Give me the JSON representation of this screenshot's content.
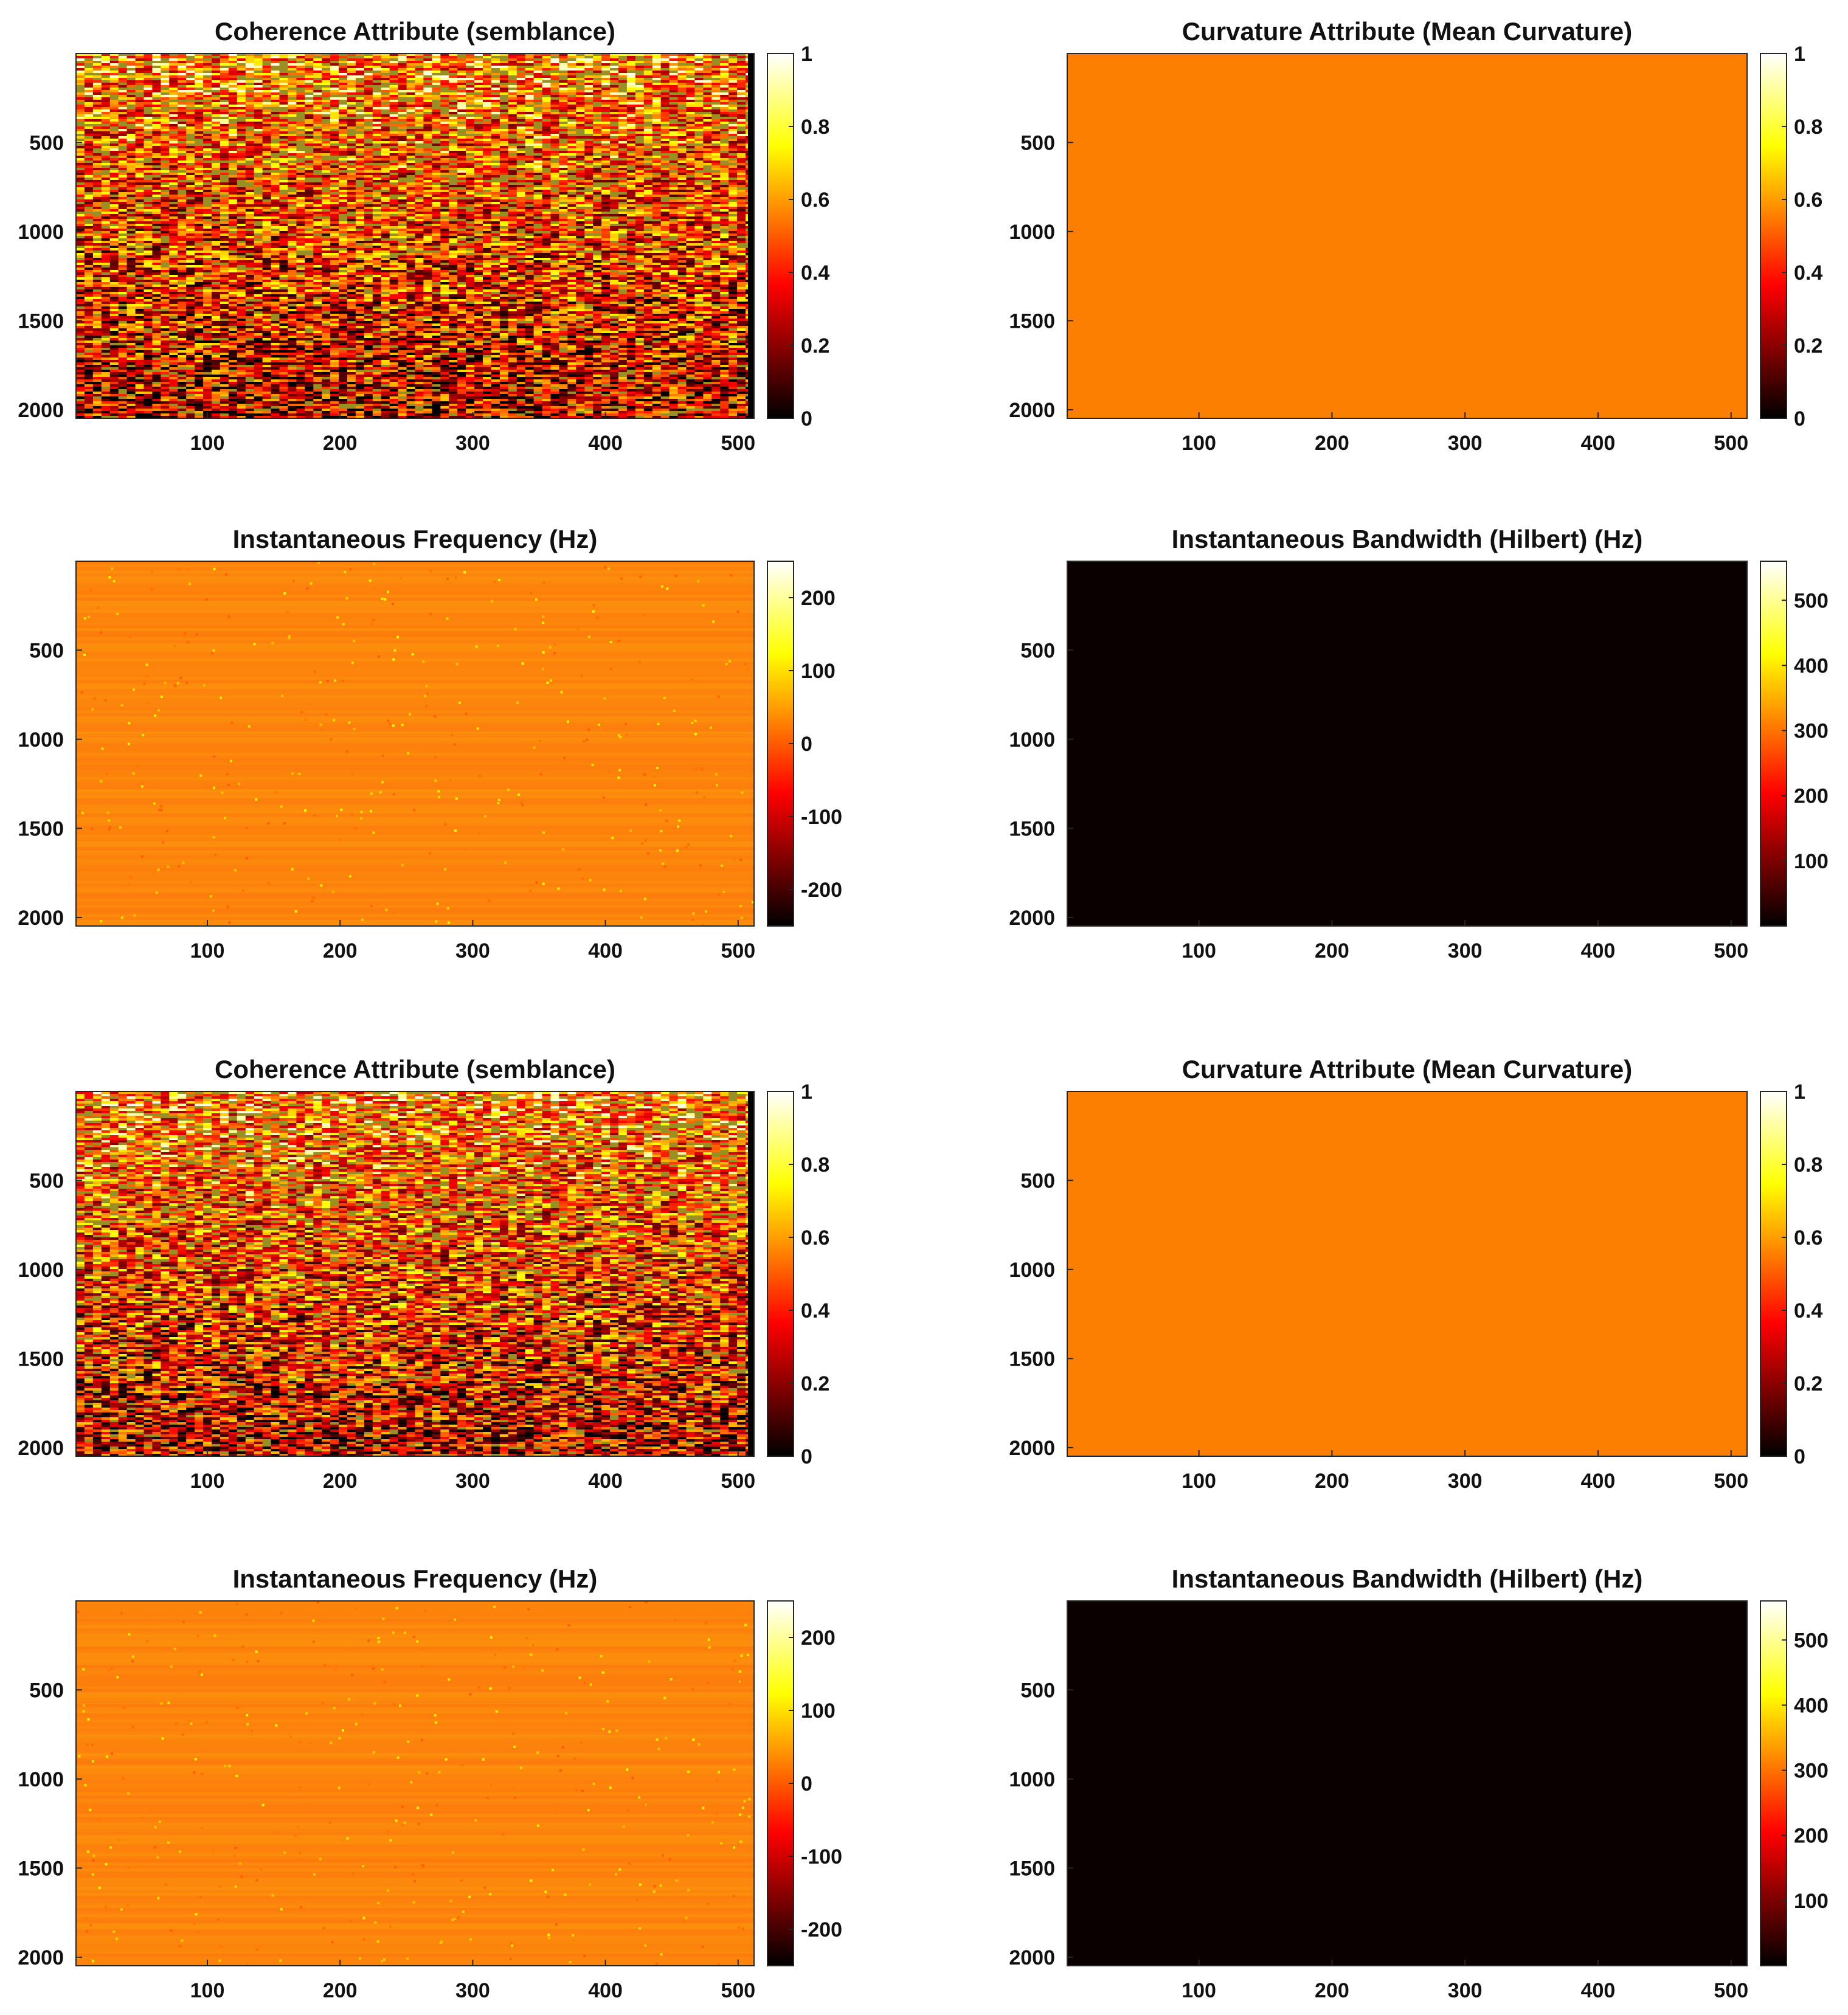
{
  "chart_data": [
    {
      "type": "heatmap",
      "title": "Coherence Attribute (semblance)",
      "x_ticks": [
        100,
        200,
        300,
        400,
        500
      ],
      "xlim": [
        1,
        512
      ],
      "y_ticks": [
        500,
        1000,
        1500,
        2000
      ],
      "ylim": [
        1,
        2048
      ],
      "y_reversed": true,
      "colorbar": {
        "colormap": "hot",
        "ticks": [
          "0",
          "0.2",
          "0.4",
          "0.6",
          "0.8",
          "1"
        ],
        "range": [
          0,
          1
        ]
      },
      "pattern": "coherence",
      "fill_color": "#c84a12"
    },
    {
      "type": "heatmap",
      "title": "Curvature Attribute (Mean Curvature)",
      "x_ticks": [
        100,
        200,
        300,
        400,
        500
      ],
      "xlim": [
        1,
        512
      ],
      "y_ticks": [
        500,
        1000,
        1500,
        2000
      ],
      "ylim": [
        1,
        2048
      ],
      "y_reversed": true,
      "colorbar": {
        "colormap": "hot",
        "ticks": [
          "0",
          "0.2",
          "0.4",
          "0.6",
          "0.8",
          "1"
        ],
        "range": [
          0,
          1
        ]
      },
      "pattern": "uniform",
      "fill_color": "#fd7f02"
    },
    {
      "type": "heatmap",
      "title": "Instantaneous Frequency (Hz)",
      "x_ticks": [
        100,
        200,
        300,
        400,
        500
      ],
      "xlim": [
        1,
        512
      ],
      "y_ticks": [
        500,
        1000,
        1500,
        2000
      ],
      "ylim": [
        1,
        2048
      ],
      "y_reversed": true,
      "colorbar": {
        "colormap": "hot",
        "ticks": [
          "-200",
          "-100",
          "0",
          "100",
          "200"
        ],
        "range": [
          -250,
          250
        ]
      },
      "pattern": "noisy",
      "fill_color": "#f88a1e"
    },
    {
      "type": "heatmap",
      "title": "Instantaneous Bandwidth (Hilbert) (Hz)",
      "x_ticks": [
        100,
        200,
        300,
        400,
        500
      ],
      "xlim": [
        1,
        512
      ],
      "y_ticks": [
        500,
        1000,
        1500,
        2000
      ],
      "ylim": [
        1,
        2048
      ],
      "y_reversed": true,
      "colorbar": {
        "colormap": "hot",
        "ticks": [
          "100",
          "200",
          "300",
          "400",
          "500"
        ],
        "range": [
          0,
          560
        ]
      },
      "pattern": "uniform",
      "fill_color": "#0b0000"
    },
    {
      "type": "heatmap",
      "title": "Coherence Attribute (semblance)",
      "x_ticks": [
        100,
        200,
        300,
        400,
        500
      ],
      "xlim": [
        1,
        512
      ],
      "y_ticks": [
        500,
        1000,
        1500,
        2000
      ],
      "ylim": [
        1,
        2048
      ],
      "y_reversed": true,
      "colorbar": {
        "colormap": "hot",
        "ticks": [
          "0",
          "0.2",
          "0.4",
          "0.6",
          "0.8",
          "1"
        ],
        "range": [
          0,
          1
        ]
      },
      "pattern": "coherence",
      "fill_color": "#c84a12"
    },
    {
      "type": "heatmap",
      "title": "Curvature Attribute (Mean Curvature)",
      "x_ticks": [
        100,
        200,
        300,
        400,
        500
      ],
      "xlim": [
        1,
        512
      ],
      "y_ticks": [
        500,
        1000,
        1500,
        2000
      ],
      "ylim": [
        1,
        2048
      ],
      "y_reversed": true,
      "colorbar": {
        "colormap": "hot",
        "ticks": [
          "0",
          "0.2",
          "0.4",
          "0.6",
          "0.8",
          "1"
        ],
        "range": [
          0,
          1
        ]
      },
      "pattern": "uniform",
      "fill_color": "#fd7f02"
    },
    {
      "type": "heatmap",
      "title": "Instantaneous Frequency (Hz)",
      "x_ticks": [
        100,
        200,
        300,
        400,
        500
      ],
      "xlim": [
        1,
        512
      ],
      "y_ticks": [
        500,
        1000,
        1500,
        2000
      ],
      "ylim": [
        1,
        2048
      ],
      "y_reversed": true,
      "colorbar": {
        "colormap": "hot",
        "ticks": [
          "-200",
          "-100",
          "0",
          "100",
          "200"
        ],
        "range": [
          -250,
          250
        ]
      },
      "pattern": "noisy",
      "fill_color": "#f88a1e"
    },
    {
      "type": "heatmap",
      "title": "Instantaneous Bandwidth (Hilbert) (Hz)",
      "x_ticks": [
        100,
        200,
        300,
        400,
        500
      ],
      "xlim": [
        1,
        512
      ],
      "y_ticks": [
        500,
        1000,
        1500,
        2000
      ],
      "ylim": [
        1,
        2048
      ],
      "y_reversed": true,
      "colorbar": {
        "colormap": "hot",
        "ticks": [
          "100",
          "200",
          "300",
          "400",
          "500"
        ],
        "range": [
          0,
          560
        ]
      },
      "pattern": "uniform",
      "fill_color": "#0b0000"
    }
  ]
}
